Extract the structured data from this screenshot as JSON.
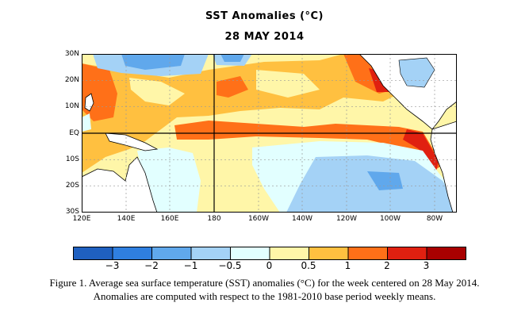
{
  "title": "SST Anomalies (°C)",
  "date": "28 MAY 2014",
  "map": {
    "lat_labels": [
      "30N",
      "20N",
      "10N",
      "EQ",
      "10S",
      "20S",
      "30S"
    ],
    "lon_labels": [
      "120E",
      "140E",
      "160E",
      "180",
      "160W",
      "140W",
      "120W",
      "100W",
      "80W"
    ],
    "lat_range": [
      -30,
      30
    ],
    "lon_range": [
      "120E",
      "70W"
    ],
    "reference_lines": [
      "EQ",
      "180"
    ],
    "grid": "dashed 20° longitude, 10° latitude"
  },
  "colorbar": {
    "labels": [
      "−3",
      "−2",
      "−1",
      "−0.5",
      "0",
      "0.5",
      "1",
      "2",
      "3"
    ],
    "colors": [
      "#1f60c0",
      "#2f7fe0",
      "#60a8ec",
      "#a4d2f6",
      "#e2ffff",
      "#fff6a8",
      "#ffc040",
      "#ff7018",
      "#e02010",
      "#a80000"
    ]
  },
  "caption": {
    "line1": "Figure 1. Average sea surface temperature (SST) anomalies (°C) for the week centered on 28 May 2014.",
    "line2": "Anomalies are computed with respect to the 1981-2010 base period weekly means."
  }
}
